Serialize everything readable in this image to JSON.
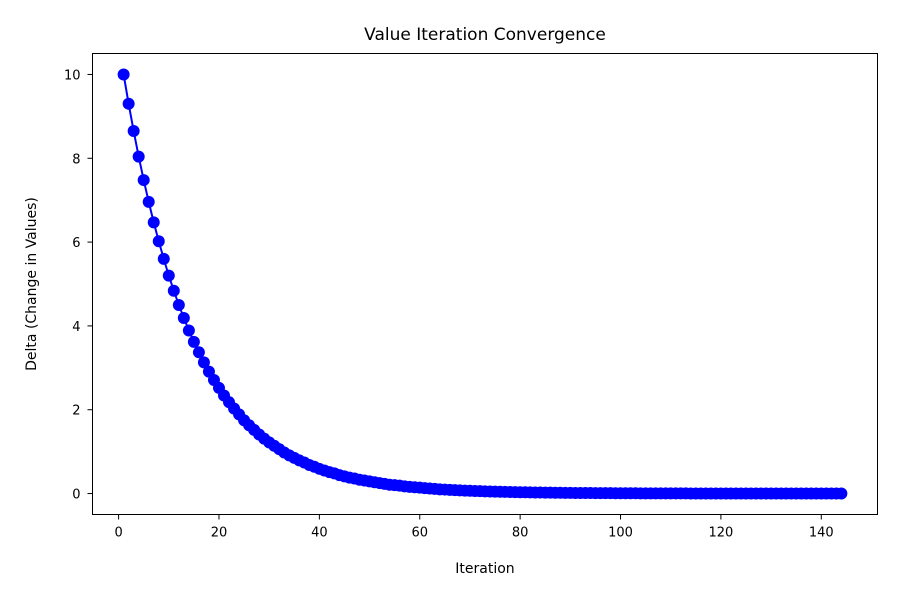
{
  "chart_data": {
    "type": "line",
    "title": "Value Iteration Convergence",
    "xlabel": "Iteration",
    "ylabel": "Delta (Change in Values)",
    "xlim": [
      -5.2,
      151.2
    ],
    "ylim": [
      -0.5,
      10.5
    ],
    "x_ticks": [
      0,
      20,
      40,
      60,
      80,
      100,
      120,
      140
    ],
    "y_ticks": [
      0,
      2,
      4,
      6,
      8,
      10
    ],
    "grid": false,
    "legend": "none",
    "marker": "circle",
    "color": "#0000ff",
    "series": [
      {
        "x": [
          1,
          2,
          3,
          4,
          5,
          6,
          7,
          8,
          9,
          10,
          11,
          12,
          13,
          14,
          15,
          16,
          17,
          18,
          19,
          20,
          21,
          22,
          23,
          24,
          25,
          26,
          27,
          28,
          29,
          30,
          31,
          32,
          33,
          34,
          35,
          36,
          37,
          38,
          39,
          40,
          41,
          42,
          43,
          44,
          45,
          46,
          47,
          48,
          49,
          50,
          51,
          52,
          53,
          54,
          55,
          56,
          57,
          58,
          59,
          60,
          61,
          62,
          63,
          64,
          65,
          66,
          67,
          68,
          69,
          70,
          71,
          72,
          73,
          74,
          75,
          76,
          77,
          78,
          79,
          80,
          81,
          82,
          83,
          84,
          85,
          86,
          87,
          88,
          89,
          90,
          91,
          92,
          93,
          94,
          95,
          96,
          97,
          98,
          99,
          100,
          101,
          102,
          103,
          104,
          105,
          106,
          107,
          108,
          109,
          110,
          111,
          112,
          113,
          114,
          115,
          116,
          117,
          118,
          119,
          120,
          121,
          122,
          123,
          124,
          125,
          126,
          127,
          128,
          129,
          130,
          131,
          132,
          133,
          134,
          135,
          136,
          137,
          138,
          139,
          140,
          141,
          142,
          143,
          144
        ],
        "values": [
          10.0,
          9.3,
          8.65,
          8.04,
          7.48,
          6.96,
          6.47,
          6.02,
          5.6,
          5.2,
          4.84,
          4.5,
          4.19,
          3.89,
          3.62,
          3.37,
          3.13,
          2.91,
          2.71,
          2.52,
          2.34,
          2.18,
          2.03,
          1.89,
          1.75,
          1.63,
          1.52,
          1.41,
          1.31,
          1.22,
          1.14,
          1.06,
          0.98,
          0.91,
          0.85,
          0.79,
          0.74,
          0.68,
          0.64,
          0.59,
          0.55,
          0.51,
          0.48,
          0.44,
          0.41,
          0.38,
          0.36,
          0.33,
          0.31,
          0.29,
          0.27,
          0.25,
          0.23,
          0.21,
          0.2,
          0.19,
          0.17,
          0.16,
          0.15,
          0.14,
          0.13,
          0.12,
          0.11,
          0.1,
          0.095,
          0.088,
          0.082,
          0.076,
          0.071,
          0.066,
          0.061,
          0.057,
          0.053,
          0.049,
          0.046,
          0.043,
          0.04,
          0.037,
          0.034,
          0.032,
          0.03,
          0.028,
          0.026,
          0.024,
          0.022,
          0.021,
          0.019,
          0.018,
          0.017,
          0.015,
          0.014,
          0.013,
          0.012,
          0.012,
          0.011,
          0.01,
          0.009,
          0.009,
          0.008,
          0.007,
          0.007,
          0.006,
          0.006,
          0.005,
          0.005,
          0.005,
          0.004,
          0.004,
          0.004,
          0.003,
          0.003,
          0.003,
          0.003,
          0.002,
          0.002,
          0.002,
          0.002,
          0.002,
          0.002,
          0.001,
          0.001,
          0.001,
          0.001,
          0.001,
          0.001,
          0.001,
          0.001,
          0.001,
          0.001,
          0.001,
          0.0,
          0.0,
          0.0,
          0.0,
          0.0,
          0.0,
          0.0,
          0.0,
          0.0,
          0.0,
          0.0,
          0.0,
          0.0,
          0.0
        ]
      }
    ]
  }
}
